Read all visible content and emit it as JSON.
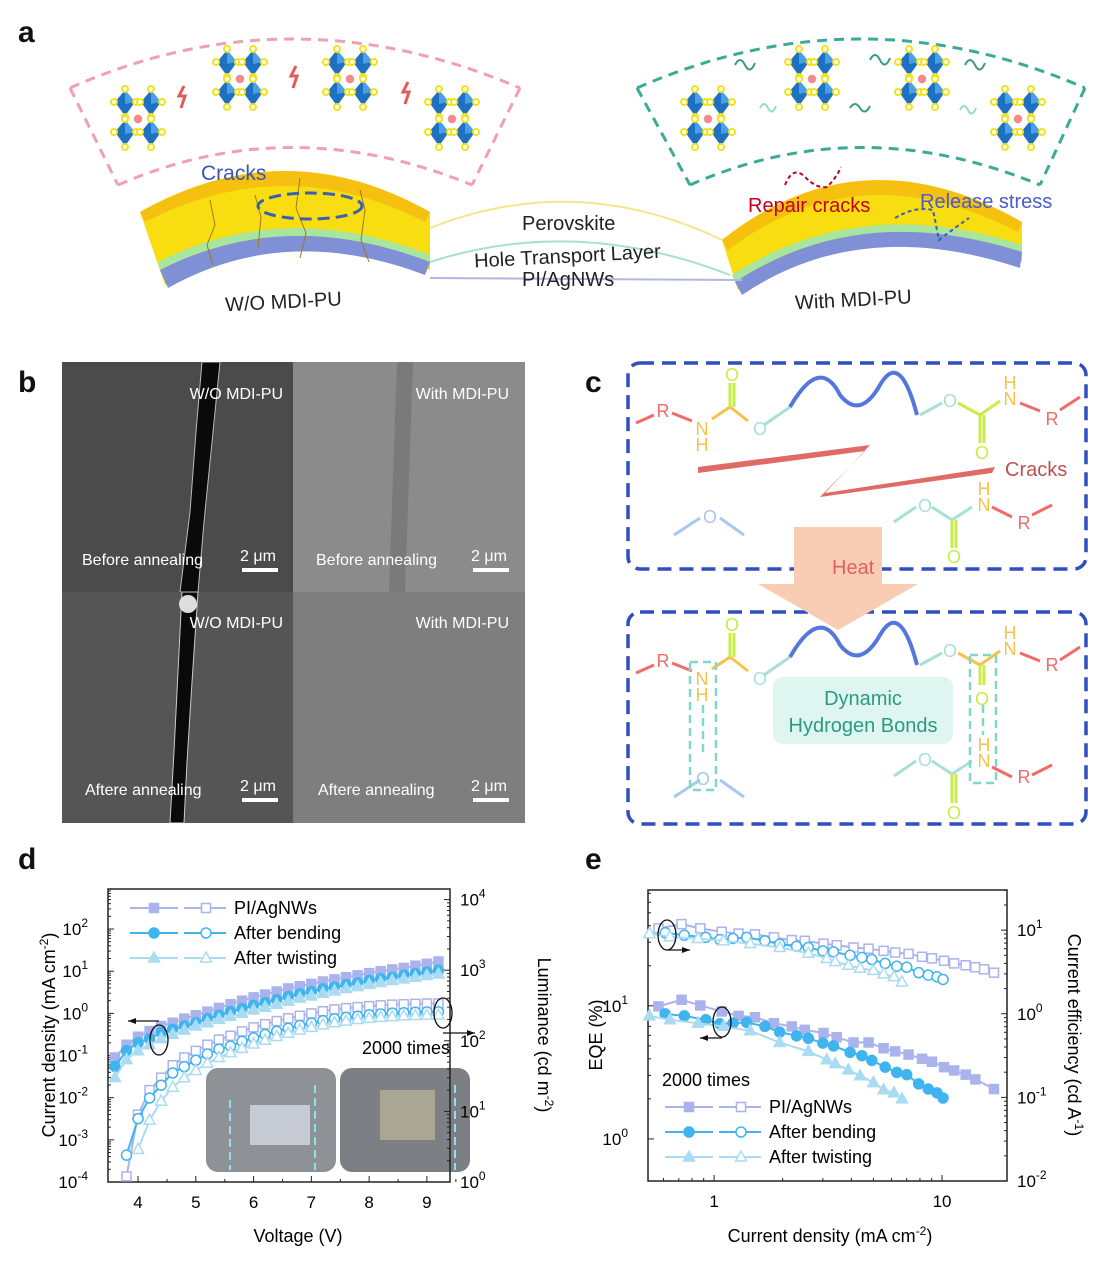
{
  "panel_labels": {
    "a": "a",
    "b": "b",
    "c": "c",
    "d": "d",
    "e": "e"
  },
  "panel_a": {
    "cracks_label": "Cracks",
    "repair_label": "Repair cracks",
    "release_label": "Release stress",
    "layer_perovskite": "Perovskite",
    "layer_htl": "Hole Transport Layer",
    "layer_substrate": "PI/AgNWs",
    "left_caption": "W/O MDI-PU",
    "right_caption": "With MDI-PU",
    "colors": {
      "pink": "#f0a0b0",
      "teal": "#3aab95",
      "yellow": "#f7dc1e",
      "green": "#a8e6a0",
      "blue": "#8092d8",
      "octahedron": "#1e70c0"
    }
  },
  "panel_b": {
    "images": [
      {
        "title": "W/O MDI-PU",
        "caption": "Before annealing",
        "scale": "2 μm"
      },
      {
        "title": "With MDI-PU",
        "caption": "Before annealing",
        "scale": "2 μm"
      },
      {
        "title": "W/O MDI-PU",
        "caption": "Aftere annealing",
        "scale": "2 μm"
      },
      {
        "title": "With MDI-PU",
        "caption": "Aftere annealing",
        "scale": "2 μm"
      }
    ]
  },
  "panel_c": {
    "atoms": {
      "R": "R",
      "N": "N",
      "H": "H",
      "O": "O",
      "star": "*"
    },
    "cracks_label": "Cracks",
    "heat_label": "Heat",
    "hbond_line1": "Dynamic",
    "hbond_line2": "Hydrogen Bonds"
  },
  "chart_data": [
    {
      "id": "d",
      "type": "line",
      "annotation": "2000 times",
      "xlabel": "Voltage (V)",
      "ylabel": {
        "text": "Current density (mA cm",
        "sup": "-2",
        "tail": ")"
      },
      "y2label": {
        "text": "Luminance (cd m",
        "sup": "-2",
        "tail": ")"
      },
      "xlim": [
        3.48,
        9.4
      ],
      "ylim_log": [
        -4,
        2.95
      ],
      "y2lim_log": [
        0,
        4.15
      ],
      "xticks": [
        "4",
        "5",
        "6",
        "7",
        "8",
        "9"
      ],
      "yticks": [
        {
          "b": "10",
          "e": "-4"
        },
        {
          "b": "10",
          "e": "-3"
        },
        {
          "b": "10",
          "e": "-2"
        },
        {
          "b": "10",
          "e": "-1"
        },
        {
          "b": "10",
          "e": "0"
        },
        {
          "b": "10",
          "e": "1"
        },
        {
          "b": "10",
          "e": "2"
        }
      ],
      "y2ticks": [
        {
          "b": "10",
          "e": "0"
        },
        {
          "b": "10",
          "e": "1"
        },
        {
          "b": "10",
          "e": "2"
        },
        {
          "b": "10",
          "e": "3"
        },
        {
          "b": "10",
          "e": "4"
        }
      ],
      "legend": [
        {
          "name": "PI/AgNWs",
          "color": "#aab3ec",
          "marker": "square"
        },
        {
          "name": "After bending",
          "color": "#3fb4ef",
          "marker": "circle"
        },
        {
          "name": "After twisting",
          "color": "#a9dcf3",
          "marker": "triangle"
        }
      ],
      "legend_position": "top-left",
      "current_density_x": [
        3.6,
        3.8,
        4.0,
        4.2,
        4.4,
        4.6,
        4.8,
        5.0,
        5.2,
        5.4,
        5.6,
        5.8,
        6.0,
        6.2,
        6.4,
        6.6,
        6.8,
        7.0,
        7.2,
        7.4,
        7.6,
        7.8,
        8.0,
        8.2,
        8.4,
        8.6,
        8.8,
        9.0,
        9.2
      ],
      "series": [
        {
          "name": "PI/AgNWs",
          "axis": "left",
          "filled": true,
          "values": [
            0.09,
            0.18,
            0.28,
            0.38,
            0.5,
            0.6,
            0.75,
            0.9,
            1.1,
            1.35,
            1.65,
            2.0,
            2.4,
            2.8,
            3.3,
            3.9,
            4.4,
            5.0,
            5.7,
            6.4,
            7.2,
            8.0,
            9.0,
            10,
            11,
            12,
            13.5,
            15,
            17
          ]
        },
        {
          "name": "After bending",
          "axis": "left",
          "filled": true,
          "values": [
            0.055,
            0.13,
            0.2,
            0.25,
            0.35,
            0.42,
            0.5,
            0.6,
            0.75,
            0.9,
            1.1,
            1.3,
            1.55,
            1.8,
            2.1,
            2.5,
            2.9,
            3.3,
            3.8,
            4.2,
            4.8,
            5.3,
            6,
            6.6,
            7.2,
            8,
            8.8,
            9.5,
            10.5
          ]
        },
        {
          "name": "After twisting",
          "axis": "left",
          "filled": true,
          "values": [
            0.03,
            0.08,
            0.13,
            0.18,
            0.25,
            0.32,
            0.4,
            0.5,
            0.6,
            0.72,
            0.85,
            1.0,
            1.2,
            1.4,
            1.65,
            1.95,
            2.3,
            2.6,
            3,
            3.4,
            3.9,
            4.3,
            4.9,
            5.4,
            6,
            6.6,
            7.2,
            7.9,
            8.6
          ]
        },
        {
          "name": "PI/AgNWs",
          "axis": "right",
          "filled": false,
          "x": [
            3.8,
            4.0,
            4.2,
            4.4,
            4.6,
            4.8,
            5.0,
            5.2,
            5.4,
            5.6,
            5.8,
            6.0,
            6.2,
            6.4,
            6.6,
            6.8,
            7.0,
            7.2,
            7.4,
            7.6,
            7.8,
            8.0,
            8.2,
            8.4,
            8.6,
            8.8,
            9.0,
            9.2
          ],
          "values": [
            1.2,
            9,
            20,
            30,
            45,
            58,
            72,
            88,
            104,
            118,
            136,
            155,
            172,
            190,
            208,
            226,
            244,
            262,
            278,
            290,
            300,
            310,
            318,
            325,
            330,
            334,
            337,
            338
          ]
        },
        {
          "name": "After bending",
          "axis": "right",
          "filled": false,
          "x": [
            3.8,
            4.0,
            4.2,
            4.4,
            4.6,
            4.8,
            5.0,
            5.2,
            5.4,
            5.6,
            5.8,
            6.0,
            6.2,
            6.4,
            6.6,
            6.8,
            7.0,
            7.2,
            7.4,
            7.6,
            7.8,
            8.0,
            8.2,
            8.4,
            8.6,
            8.8,
            9.0,
            9.2
          ],
          "values": [
            2.4,
            7.9,
            15.5,
            23.5,
            35,
            43,
            53,
            65,
            76,
            84,
            98,
            110,
            123,
            136,
            150,
            165,
            178,
            192,
            204,
            215,
            223,
            233,
            240,
            247,
            250,
            254,
            257,
            257
          ]
        },
        {
          "name": "After twisting",
          "axis": "right",
          "filled": false,
          "x": [
            4.0,
            4.2,
            4.4,
            4.6,
            4.8,
            5.0,
            5.2,
            5.4,
            5.6,
            5.8,
            6.0,
            6.2,
            6.4,
            6.6,
            6.8,
            7.0,
            7.2,
            7.4,
            7.6,
            7.8,
            8.0,
            8.2,
            8.4,
            8.6,
            8.8,
            9.0,
            9.2
          ],
          "values": [
            2.9,
            7.5,
            14,
            22,
            30,
            38,
            48,
            58,
            68,
            78,
            90,
            102,
            115,
            128,
            142,
            155,
            168,
            180,
            190,
            200,
            208,
            215,
            220,
            225,
            228,
            230,
            232
          ]
        }
      ]
    },
    {
      "id": "e",
      "type": "line",
      "annotation": "2000 times",
      "xlabel": {
        "text": "Current density (mA cm",
        "sup": "-2",
        "tail": ")"
      },
      "ylabel": "EQE (%)",
      "y2label": {
        "text": "Current efficiency (cd A",
        "sup": "-1",
        "tail": ")"
      },
      "xlim_log": [
        -0.29,
        1.285
      ],
      "ylim_log": [
        -0.316,
        1.87
      ],
      "y2lim_log": [
        -2,
        1.48
      ],
      "xticks": [
        {
          "v": 1,
          "label": "1"
        },
        {
          "v": 10,
          "label": "10"
        }
      ],
      "yticks": [
        {
          "b": "10",
          "e": "0"
        },
        {
          "b": "10",
          "e": "1"
        }
      ],
      "y2ticks": [
        {
          "b": "10",
          "e": "-2"
        },
        {
          "b": "10",
          "e": "-1"
        },
        {
          "b": "10",
          "e": "0"
        },
        {
          "b": "10",
          "e": "1"
        }
      ],
      "legend": [
        {
          "name": "PI/AgNWs",
          "color": "#aab3ec",
          "marker": "square"
        },
        {
          "name": "After bending",
          "color": "#3fb4ef",
          "marker": "circle"
        },
        {
          "name": "After twisting",
          "color": "#a9dcf3",
          "marker": "triangle"
        }
      ],
      "legend_position": "bottom-left",
      "series": [
        {
          "name": "PI/AgNWs",
          "axis": "left",
          "filled": true,
          "x": [
            0.57,
            0.72,
            0.87,
            1.08,
            1.28,
            1.51,
            1.83,
            2.19,
            2.5,
            3.02,
            3.45,
            4.09,
            4.76,
            5.54,
            6.23,
            7.13,
            8.17,
            9.03,
            10.2,
            11.3,
            12.7,
            14.0,
            16.9
          ],
          "values": [
            9.9,
            11.1,
            10.06,
            9.07,
            8.4,
            8.2,
            7.4,
            7.0,
            6.6,
            6.25,
            5.8,
            5.3,
            5.3,
            4.8,
            4.55,
            4.3,
            4.0,
            3.8,
            3.46,
            3.27,
            3.04,
            2.8,
            2.37
          ]
        },
        {
          "name": "After bending",
          "axis": "left",
          "filled": true,
          "x": [
            0.61,
            0.74,
            0.92,
            1.06,
            1.21,
            1.39,
            1.67,
            1.94,
            2.3,
            2.59,
            3.0,
            3.34,
            3.95,
            4.45,
            4.92,
            5.63,
            6.33,
            7.0,
            7.9,
            8.7,
            9.5,
            10.1
          ],
          "values": [
            8.7,
            8.4,
            7.85,
            7.33,
            7.4,
            7.5,
            7.0,
            6.35,
            5.95,
            5.7,
            5.25,
            5.0,
            4.47,
            4.22,
            3.89,
            3.46,
            3.16,
            3.04,
            2.59,
            2.37,
            2.22,
            2.03
          ]
        },
        {
          "name": "After twisting",
          "axis": "left",
          "filled": true,
          "x": [
            0.52,
            0.64,
            0.85,
            1.1,
            1.44,
            1.94,
            2.59,
            3.12,
            3.4,
            3.88,
            4.37,
            5.0,
            5.54,
            6.15,
            6.67
          ],
          "values": [
            8.4,
            7.85,
            7.4,
            7.0,
            6.5,
            5.3,
            4.55,
            3.93,
            3.68,
            3.3,
            2.98,
            2.65,
            2.34,
            2.22,
            2.0
          ]
        },
        {
          "name": "PI/AgNWs",
          "axis": "right",
          "filled": false,
          "x": [
            0.57,
            0.72,
            0.87,
            1.08,
            1.28,
            1.51,
            1.83,
            2.19,
            2.5,
            3.02,
            3.45,
            4.09,
            4.76,
            5.54,
            6.23,
            7.13,
            8.17,
            9.03,
            10.2,
            11.3,
            12.7,
            14.0,
            15.3,
            16.9
          ],
          "values": [
            10.5,
            11.8,
            10.5,
            9.55,
            9.1,
            8.9,
            8.2,
            7.6,
            7.45,
            6.9,
            6.6,
            6.2,
            6.0,
            5.65,
            5.4,
            5.2,
            4.8,
            4.6,
            4.3,
            4.0,
            3.8,
            3.6,
            3.4,
            3.1
          ]
        },
        {
          "name": "After bending",
          "axis": "right",
          "filled": false,
          "x": [
            0.61,
            0.74,
            0.92,
            1.06,
            1.21,
            1.39,
            1.67,
            1.94,
            2.3,
            2.59,
            3.0,
            3.34,
            3.95,
            4.45,
            4.92,
            5.63,
            6.33,
            7.0,
            7.9,
            8.7,
            9.5,
            10.1
          ],
          "values": [
            9.3,
            8.7,
            8.2,
            7.7,
            7.95,
            8.2,
            7.45,
            6.8,
            6.4,
            6.2,
            5.65,
            5.5,
            5.0,
            4.7,
            4.45,
            4.0,
            3.7,
            3.6,
            3.1,
            2.9,
            2.77,
            2.57
          ]
        },
        {
          "name": "After twisting",
          "axis": "right",
          "filled": false,
          "x": [
            0.52,
            0.64,
            0.85,
            1.1,
            1.44,
            1.94,
            2.59,
            3.12,
            3.4,
            3.88,
            4.37,
            5.0,
            5.54,
            6.15,
            6.67
          ],
          "values": [
            9.1,
            8.3,
            7.95,
            7.45,
            6.9,
            6.2,
            5.3,
            4.6,
            4.2,
            3.8,
            3.5,
            3.3,
            3.0,
            2.77,
            2.4
          ]
        }
      ]
    }
  ]
}
